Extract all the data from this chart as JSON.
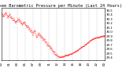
{
  "title": "Milwaukee Barometric Pressure per Minute (Last 24 Hours)",
  "background_color": "#ffffff",
  "plot_bg_color": "#ffffff",
  "line_color": "#ff0000",
  "grid_color": "#888888",
  "ylim": [
    29.35,
    30.55
  ],
  "yticks": [
    29.4,
    29.5,
    29.6,
    29.7,
    29.8,
    29.9,
    30.0,
    30.1,
    30.2,
    30.3,
    30.4,
    30.5
  ],
  "n_points": 1440,
  "n_vgrid": 13,
  "title_fontsize": 3.8,
  "tick_fontsize": 2.8
}
